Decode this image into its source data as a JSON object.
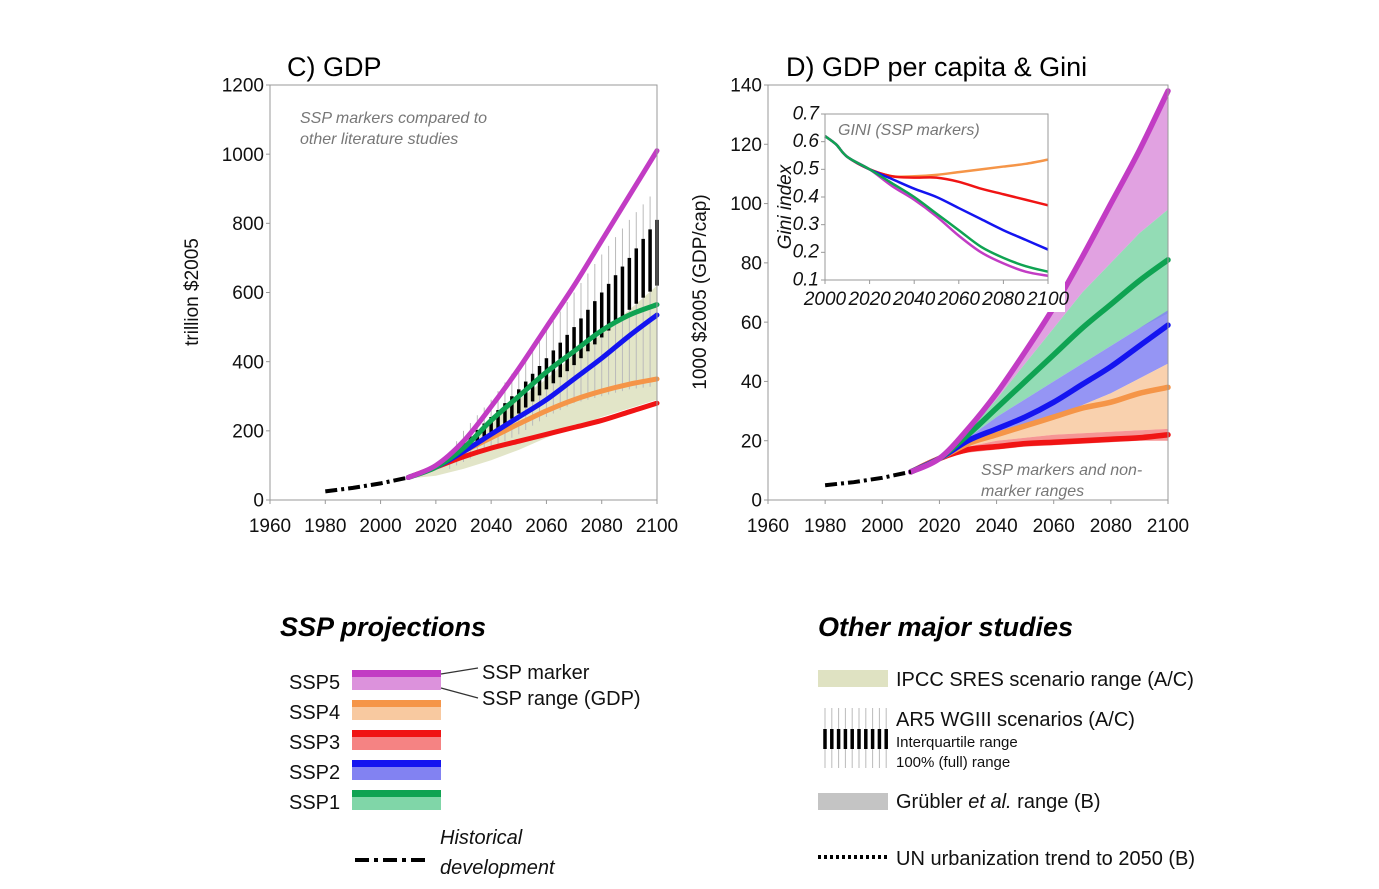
{
  "colors": {
    "SSP5": {
      "line": "#c23cc4",
      "fill": "#dc92dc"
    },
    "SSP4": {
      "line": "#f59548",
      "fill": "#f8c9a0"
    },
    "SSP3": {
      "line": "#f01414",
      "fill": "#f58383"
    },
    "SSP2": {
      "line": "#1414f0",
      "fill": "#8282f2"
    },
    "SSP1": {
      "line": "#0fa352",
      "fill": "#80d6a8"
    },
    "sres": "#dfe2c2",
    "grubler": "#c4c4c4",
    "history": "#000000"
  },
  "chart_data": [
    {
      "id": "gdp",
      "type": "line",
      "title": "C) GDP",
      "ylabel": "trillion $2005",
      "xlabel": "",
      "xlim": [
        1960,
        2100
      ],
      "ylim": [
        0,
        1200
      ],
      "xticks": [
        1960,
        1980,
        2000,
        2020,
        2040,
        2060,
        2080,
        2100
      ],
      "yticks": [
        0,
        200,
        400,
        600,
        800,
        1000,
        1200
      ],
      "annotation": [
        "SSP markers compared to",
        "other literature studies"
      ],
      "history": {
        "x": [
          1980,
          1990,
          2000,
          2010
        ],
        "y": [
          25,
          35,
          48,
          65
        ]
      },
      "x": [
        2010,
        2020,
        2030,
        2040,
        2050,
        2060,
        2070,
        2080,
        2090,
        2100
      ],
      "series": [
        {
          "name": "SSP3",
          "values": [
            65,
            95,
            125,
            150,
            170,
            190,
            210,
            230,
            255,
            280
          ]
        },
        {
          "name": "SSP4",
          "values": [
            65,
            95,
            140,
            180,
            220,
            258,
            290,
            315,
            335,
            350
          ]
        },
        {
          "name": "SSP2",
          "values": [
            65,
            95,
            140,
            190,
            240,
            290,
            350,
            410,
            475,
            535
          ]
        },
        {
          "name": "SSP1",
          "values": [
            65,
            95,
            150,
            230,
            300,
            370,
            430,
            490,
            535,
            565
          ]
        },
        {
          "name": "SSP5",
          "values": [
            65,
            100,
            170,
            270,
            380,
            500,
            620,
            750,
            880,
            1010
          ]
        }
      ],
      "sres_range": {
        "x": [
          2010,
          2020,
          2030,
          2040,
          2050,
          2060,
          2070,
          2080,
          2090,
          2100
        ],
        "low": [
          62,
          70,
          90,
          115,
          145,
          180,
          210,
          240,
          265,
          290
        ],
        "high": [
          66,
          100,
          160,
          230,
          290,
          350,
          420,
          480,
          550,
          620
        ]
      },
      "ar5": {
        "x": [
          2025,
          2030,
          2040,
          2050,
          2060,
          2070,
          2080,
          2090,
          2100
        ],
        "iqr_low": [
          110,
          140,
          190,
          250,
          320,
          390,
          470,
          550,
          620
        ],
        "iqr_high": [
          125,
          165,
          240,
          320,
          410,
          500,
          600,
          700,
          810
        ],
        "full_low": [
          90,
          110,
          150,
          190,
          240,
          280,
          300,
          320,
          330
        ],
        "full_high": [
          140,
          200,
          290,
          390,
          490,
          600,
          710,
          810,
          900
        ]
      }
    },
    {
      "id": "gdppc",
      "type": "area",
      "title": "D) GDP per capita & Gini",
      "ylabel": "1000 $2005 (GDP/cap)",
      "xlabel": "",
      "xlim": [
        1960,
        2100
      ],
      "ylim": [
        0,
        140
      ],
      "xticks": [
        1960,
        1980,
        2000,
        2020,
        2040,
        2060,
        2080,
        2100
      ],
      "yticks": [
        0,
        20,
        40,
        60,
        80,
        100,
        120,
        140
      ],
      "annotation": [
        "SSP markers and  non-",
        "marker ranges"
      ],
      "history": {
        "x": [
          1980,
          1990,
          2000,
          2010
        ],
        "y": [
          5,
          6,
          7.5,
          9.5
        ]
      },
      "x": [
        2010,
        2020,
        2030,
        2040,
        2050,
        2060,
        2070,
        2080,
        2090,
        2100
      ],
      "series": [
        {
          "name": "SSP3",
          "marker": [
            9.5,
            14,
            17,
            18,
            19,
            19.5,
            20,
            20.5,
            21,
            22
          ],
          "low": [
            9.5,
            14,
            16,
            17,
            18,
            18.5,
            19,
            19.5,
            20,
            20
          ],
          "high": [
            9.5,
            14,
            18,
            20,
            21,
            22,
            22.5,
            23,
            23.5,
            24
          ]
        },
        {
          "name": "SSP4",
          "marker": [
            9.5,
            14,
            19,
            22,
            25,
            28,
            31,
            33,
            36,
            38
          ],
          "low": [
            9.5,
            14,
            18,
            20,
            21,
            22,
            22.5,
            23,
            23.5,
            24
          ],
          "high": [
            9.5,
            14,
            19,
            22,
            25,
            28,
            32,
            36,
            41,
            46
          ]
        },
        {
          "name": "SSP2",
          "marker": [
            9.5,
            14,
            20,
            24,
            28,
            33,
            39,
            45,
            52,
            59
          ],
          "low": [
            9.5,
            14,
            19,
            22,
            25,
            28,
            32,
            36,
            41,
            46
          ],
          "high": [
            9.5,
            14,
            21,
            28,
            34,
            40,
            46,
            52,
            58,
            64
          ]
        },
        {
          "name": "SSP1",
          "marker": [
            9.5,
            14,
            22,
            31,
            40,
            49,
            58,
            66,
            74,
            81
          ],
          "low": [
            9.5,
            14,
            21,
            28,
            34,
            40,
            46,
            52,
            58,
            63
          ],
          "high": [
            9.5,
            14,
            23,
            34,
            46,
            58,
            70,
            80,
            90,
            98
          ]
        },
        {
          "name": "SSP5",
          "marker": [
            9.5,
            14,
            24,
            36,
            50,
            65,
            82,
            100,
            118,
            138
          ],
          "low": [
            9.5,
            14,
            23,
            34,
            46,
            58,
            70,
            80,
            90,
            98
          ],
          "high": [
            9.5,
            14,
            24,
            36,
            50,
            65,
            82,
            100,
            118,
            138
          ]
        }
      ]
    },
    {
      "id": "gini",
      "type": "line",
      "title": "GINI (SSP markers)",
      "ylabel": "Gini index",
      "xlim": [
        2000,
        2100
      ],
      "ylim": [
        0.1,
        0.7
      ],
      "xticks": [
        2000,
        2020,
        2040,
        2060,
        2080,
        2100
      ],
      "yticks": [
        0.1,
        0.2,
        0.3,
        0.4,
        0.5,
        0.6,
        0.7
      ],
      "x": [
        2000,
        2005,
        2010,
        2020,
        2030,
        2040,
        2050,
        2060,
        2070,
        2080,
        2090,
        2100
      ],
      "series": [
        {
          "name": "SSP4",
          "values": [
            0.62,
            0.59,
            0.545,
            0.5,
            0.475,
            0.475,
            0.48,
            0.49,
            0.5,
            0.51,
            0.52,
            0.535
          ]
        },
        {
          "name": "SSP3",
          "values": [
            0.62,
            0.59,
            0.545,
            0.5,
            0.475,
            0.47,
            0.47,
            0.455,
            0.43,
            0.41,
            0.39,
            0.37
          ]
        },
        {
          "name": "SSP2",
          "values": [
            0.62,
            0.59,
            0.545,
            0.5,
            0.465,
            0.43,
            0.4,
            0.36,
            0.32,
            0.28,
            0.245,
            0.21
          ]
        },
        {
          "name": "SSP5",
          "values": [
            0.62,
            0.59,
            0.545,
            0.5,
            0.44,
            0.39,
            0.33,
            0.26,
            0.2,
            0.16,
            0.13,
            0.115
          ]
        },
        {
          "name": "SSP1",
          "values": [
            0.62,
            0.59,
            0.545,
            0.5,
            0.45,
            0.4,
            0.34,
            0.28,
            0.22,
            0.18,
            0.15,
            0.13
          ]
        }
      ]
    }
  ],
  "legend_ssp": {
    "heading": "SSP projections",
    "items": [
      "SSP5",
      "SSP4",
      "SSP3",
      "SSP2",
      "SSP1"
    ],
    "marker_label": "SSP marker",
    "range_label": "SSP range (GDP)",
    "history_label_1": "Historical",
    "history_label_2": "development"
  },
  "legend_other": {
    "heading": "Other major studies",
    "sres": "IPCC SRES scenario range (A/C)",
    "ar5": "AR5 WGIII scenarios (A/C)",
    "ar5_iqr": "Interquartile range",
    "ar5_full": "100% (full) range",
    "grubler_1": "Grübler ",
    "grubler_2": "et al.",
    "grubler_3": " range (B)",
    "un": "UN urbanization trend to 2050 (B)"
  }
}
